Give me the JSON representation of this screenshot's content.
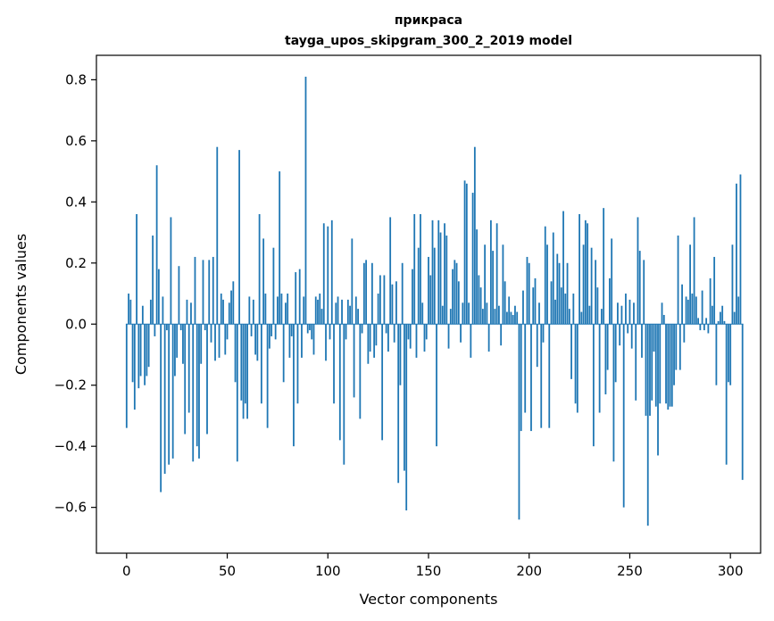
{
  "chart_data": {
    "type": "bar",
    "title": "прикраса",
    "subtitle": "tayga_upos_skipgram_300_2_2019 model",
    "xlabel": "Vector components",
    "ylabel": "Components values",
    "xlim": [
      -15,
      315
    ],
    "ylim": [
      -0.75,
      0.88
    ],
    "xticks": [
      0,
      50,
      100,
      150,
      200,
      250,
      300
    ],
    "xtick_labels": [
      "0",
      "50",
      "100",
      "150",
      "200",
      "250",
      "300"
    ],
    "yticks": [
      -0.6,
      -0.4,
      -0.2,
      0.0,
      0.2,
      0.4,
      0.6,
      0.8
    ],
    "ytick_labels": [
      "−0.6",
      "−0.4",
      "−0.2",
      "0.0",
      "0.2",
      "0.4",
      "0.6",
      "0.8"
    ],
    "bar_color": "#1f77b4",
    "values": [
      -0.34,
      0.1,
      0.08,
      -0.19,
      -0.28,
      0.36,
      -0.21,
      -0.17,
      0.06,
      -0.2,
      -0.17,
      -0.14,
      0.08,
      0.29,
      -0.04,
      0.52,
      0.18,
      -0.55,
      0.09,
      -0.49,
      -0.02,
      -0.46,
      0.35,
      -0.44,
      -0.17,
      -0.11,
      0.19,
      -0.02,
      -0.13,
      -0.36,
      0.08,
      -0.29,
      0.07,
      -0.45,
      0.22,
      -0.4,
      -0.44,
      -0.13,
      0.21,
      -0.02,
      -0.36,
      0.21,
      -0.06,
      0.22,
      -0.12,
      0.58,
      -0.11,
      0.1,
      0.08,
      -0.1,
      -0.05,
      0.07,
      0.11,
      0.14,
      -0.19,
      -0.45,
      0.57,
      -0.25,
      -0.31,
      -0.26,
      -0.31,
      0.09,
      -0.04,
      0.08,
      -0.1,
      -0.12,
      0.36,
      -0.26,
      0.28,
      0.1,
      -0.34,
      -0.08,
      -0.04,
      0.25,
      -0.05,
      0.09,
      0.5,
      0.1,
      -0.19,
      0.07,
      0.1,
      -0.11,
      -0.04,
      -0.4,
      0.17,
      -0.26,
      0.18,
      -0.11,
      0.09,
      0.81,
      -0.03,
      -0.02,
      -0.05,
      -0.1,
      0.09,
      0.08,
      0.1,
      0.05,
      0.33,
      -0.12,
      0.32,
      -0.05,
      0.34,
      -0.26,
      0.07,
      0.09,
      -0.38,
      0.08,
      -0.46,
      -0.05,
      0.08,
      0.06,
      0.28,
      -0.24,
      0.09,
      0.05,
      -0.31,
      -0.03,
      0.2,
      0.21,
      -0.13,
      -0.09,
      0.2,
      -0.11,
      -0.07,
      0.1,
      0.16,
      -0.38,
      0.16,
      -0.03,
      -0.09,
      0.35,
      0.13,
      -0.06,
      0.14,
      -0.52,
      -0.2,
      0.2,
      -0.48,
      -0.61,
      -0.05,
      -0.08,
      0.18,
      0.36,
      -0.11,
      0.25,
      0.36,
      0.07,
      -0.09,
      -0.05,
      0.22,
      0.16,
      0.34,
      0.25,
      -0.4,
      0.34,
      0.3,
      0.06,
      0.33,
      0.29,
      -0.08,
      0.05,
      0.18,
      0.21,
      0.2,
      0.14,
      -0.06,
      0.07,
      0.47,
      0.46,
      0.07,
      -0.11,
      0.43,
      0.58,
      0.31,
      0.16,
      0.12,
      0.05,
      0.26,
      0.07,
      -0.09,
      0.34,
      0.24,
      0.05,
      0.33,
      0.06,
      -0.07,
      0.26,
      0.14,
      0.04,
      0.09,
      0.04,
      0.03,
      0.06,
      0.04,
      -0.64,
      -0.35,
      0.11,
      -0.29,
      0.22,
      0.2,
      -0.35,
      0.12,
      0.15,
      -0.14,
      0.07,
      -0.34,
      -0.06,
      0.32,
      0.26,
      -0.34,
      0.14,
      0.3,
      0.08,
      0.23,
      0.2,
      0.12,
      0.37,
      0.1,
      0.2,
      0.05,
      -0.18,
      0.1,
      -0.26,
      -0.29,
      0.36,
      0.04,
      0.26,
      0.34,
      0.33,
      0.06,
      0.25,
      -0.4,
      0.21,
      0.12,
      -0.29,
      0.05,
      0.38,
      -0.23,
      -0.15,
      0.15,
      0.28,
      -0.45,
      -0.19,
      0.07,
      -0.07,
      0.06,
      -0.6,
      0.1,
      -0.03,
      0.08,
      -0.08,
      0.07,
      -0.25,
      0.35,
      0.24,
      -0.11,
      0.21,
      -0.3,
      -0.66,
      -0.3,
      -0.25,
      -0.09,
      -0.27,
      -0.43,
      -0.26,
      0.07,
      0.03,
      -0.26,
      -0.28,
      -0.27,
      -0.27,
      -0.2,
      -0.15,
      0.29,
      -0.15,
      0.13,
      -0.06,
      0.09,
      0.08,
      0.26,
      0.1,
      0.35,
      0.09,
      0.02,
      -0.02,
      0.11,
      -0.02,
      0.02,
      -0.03,
      0.15,
      0.06,
      0.22,
      -0.2,
      0.01,
      0.04,
      0.06,
      0.01,
      -0.46,
      -0.19,
      -0.2,
      0.26,
      0.04,
      0.46,
      0.09,
      0.49,
      -0.51
    ]
  }
}
